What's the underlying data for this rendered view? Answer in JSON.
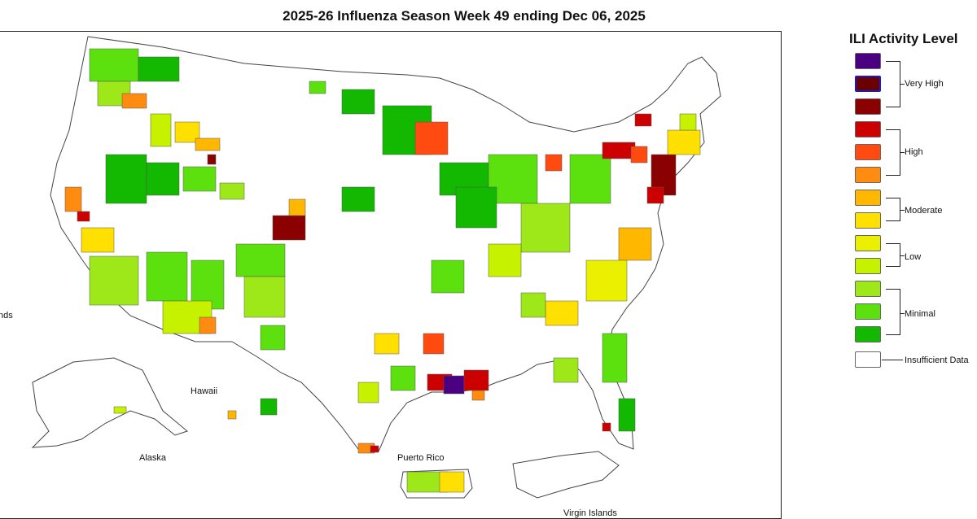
{
  "title": "2025-26 Influenza Season Week 49 ending Dec 06, 2025",
  "map": {
    "labels": {
      "hawaii": "Hawaii",
      "alaska": "Alaska",
      "puerto_rico": "Puerto Rico",
      "virgin_islands": "Virgin Islands",
      "left_edge": "nds"
    }
  },
  "legend": {
    "title": "ILI Activity Level",
    "levels": [
      {
        "color": "#4b0082",
        "group": "Very High"
      },
      {
        "color": "#6b0000",
        "group": "Very High",
        "outline": "#1a1ac8"
      },
      {
        "color": "#8b0000",
        "group": "Very High"
      },
      {
        "color": "#cc0000",
        "group": "High"
      },
      {
        "color": "#ff4a10",
        "group": "High"
      },
      {
        "color": "#ff8c10",
        "group": "High"
      },
      {
        "color": "#ffb700",
        "group": "Moderate"
      },
      {
        "color": "#ffe000",
        "group": "Moderate"
      },
      {
        "color": "#eaf000",
        "group": "Low"
      },
      {
        "color": "#c6f200",
        "group": "Low"
      },
      {
        "color": "#9ee81a",
        "group": "Minimal"
      },
      {
        "color": "#5ce00e",
        "group": "Minimal"
      },
      {
        "color": "#13b800",
        "group": "Minimal"
      },
      {
        "color": "#ffffff",
        "group": "Insufficient Data"
      }
    ],
    "groups": {
      "very_high": "Very High",
      "high": "High",
      "moderate": "Moderate",
      "low": "Low",
      "minimal": "Minimal",
      "insufficient": "Insufficient Data"
    }
  }
}
